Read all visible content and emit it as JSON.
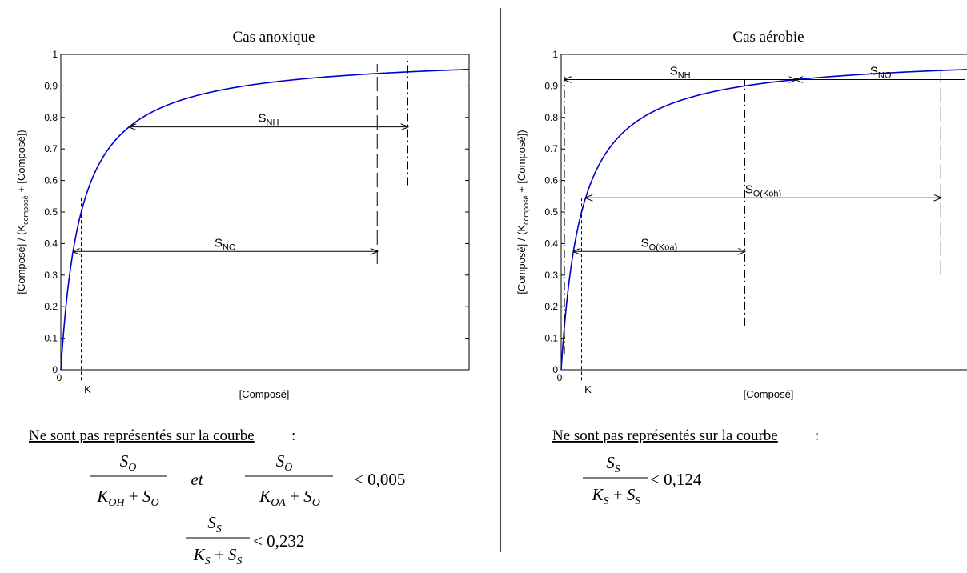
{
  "chart_data": [
    {
      "type": "line",
      "title": "Cas anoxique",
      "xlabel": "[Composé]",
      "ylabel_parts": [
        "[Composé] / (K",
        "composé",
        " + [Composé])"
      ],
      "ylim": [
        0,
        1
      ],
      "yticks": [
        "0",
        "0.1",
        "0.2",
        "0.3",
        "0.4",
        "0.5",
        "0.6",
        "0.7",
        "0.8",
        "0.9",
        "1"
      ],
      "x_zero_label": "0",
      "k_label": "K",
      "k_value": 1,
      "xlim": [
        0,
        20
      ],
      "series": [
        {
          "formula": "x/(1+x)",
          "color": "#0000cc"
        }
      ],
      "annotations": [
        {
          "label_main": "S",
          "label_sub": "NH",
          "x_from": 3.35,
          "x_to": 17.0,
          "y": 0.77,
          "style": "dash-dot"
        },
        {
          "label_main": "S",
          "label_sub": "NO",
          "x_from": 0.6,
          "x_to": 15.5,
          "y": 0.375,
          "style": "long-dash"
        }
      ]
    },
    {
      "type": "line",
      "title": "Cas aérobie",
      "xlabel": "[Composé]",
      "ylabel_parts": [
        "[Composé] / (K",
        "composé",
        " + [Composé])"
      ],
      "ylim": [
        0,
        1
      ],
      "yticks": [
        "0",
        "0.1",
        "0.2",
        "0.3",
        "0.4",
        "0.5",
        "0.6",
        "0.7",
        "0.8",
        "0.9",
        "1"
      ],
      "x_zero_label": "0",
      "k_label": "K",
      "k_value": 1,
      "xlim": [
        0,
        20
      ],
      "series": [
        {
          "formula": "x/(1+x)",
          "color": "#0000cc"
        }
      ],
      "annotations": [
        {
          "label_main": "S",
          "label_sub": "NH",
          "x_from": 0.16,
          "x_to": 11.5,
          "y": 0.92,
          "style": "dash-dot"
        },
        {
          "label_main": "S",
          "label_sub": "NO",
          "x_from": 11.5,
          "x_to": 20,
          "y": 0.92,
          "style": "long-dash"
        },
        {
          "label_main": "S",
          "label_sub": "O(Koh)",
          "x_from": 1.2,
          "x_to": 18.6,
          "y": 0.545,
          "style": "long-dash"
        },
        {
          "label_main": "S",
          "label_sub": "O(Koa)",
          "x_from": 0.6,
          "x_to": 9.0,
          "y": 0.375,
          "style": "dash-dot"
        }
      ]
    }
  ],
  "notes": {
    "left_heading": "Ne sont pas représentés sur la courbe",
    "right_heading": "Ne sont pas représentés sur la courbe",
    "colon": ":",
    "left_formula1": {
      "num": "S",
      "num_sub": "O",
      "den_a": "K",
      "den_a_sub": "OH",
      "den_b": "S",
      "den_b_sub": "O"
    },
    "connector": "et",
    "left_formula2": {
      "num": "S",
      "num_sub": "O",
      "den_a": "K",
      "den_a_sub": "OA",
      "den_b": "S",
      "den_b_sub": "O"
    },
    "left_threshold1": "< 0,005",
    "left_formula3": {
      "num": "S",
      "num_sub": "S",
      "den_a": "K",
      "den_a_sub": "S",
      "den_b": "S",
      "den_b_sub": "S"
    },
    "left_threshold2": "< 0,232",
    "right_formula": {
      "num": "S",
      "num_sub": "S",
      "den_a": "K",
      "den_a_sub": "S",
      "den_b": "S",
      "den_b_sub": "S"
    },
    "right_threshold": "< 0,124"
  }
}
